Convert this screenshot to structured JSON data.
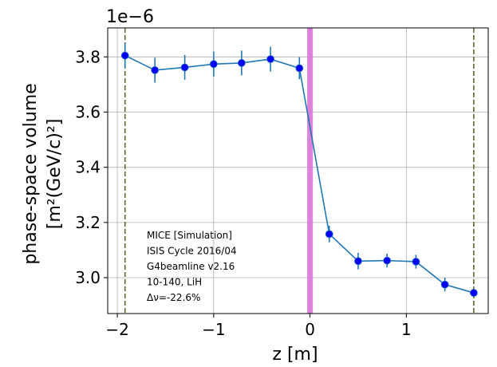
{
  "chart_data": {
    "type": "line",
    "xlabel": "z [m]",
    "ylabel_line1": "phase-space volume",
    "ylabel_line2": "[m²(GeV/c)²]",
    "offset_text": "1e−6",
    "xlim": [
      -2.1,
      1.85
    ],
    "ylim": [
      2.87,
      3.905
    ],
    "xticks": [
      -2,
      -1,
      0,
      1
    ],
    "xtick_labels": [
      "−2",
      "−1",
      "0",
      "1"
    ],
    "yticks": [
      3.0,
      3.2,
      3.4,
      3.6,
      3.8
    ],
    "ytick_labels": [
      "3.0",
      "3.2",
      "3.4",
      "3.6",
      "3.8"
    ],
    "grid": true,
    "series": [
      {
        "x": [
          -1.92,
          -1.61,
          -1.3,
          -1.0,
          -0.71,
          -0.41,
          -0.11,
          0.2,
          0.5,
          0.8,
          1.1,
          1.4,
          1.7
        ],
        "y": [
          3.805,
          3.752,
          3.762,
          3.774,
          3.778,
          3.792,
          3.759,
          3.158,
          3.06,
          3.062,
          3.058,
          2.975,
          2.945
        ],
        "yerr": [
          0.045,
          0.045,
          0.045,
          0.045,
          0.045,
          0.045,
          0.04,
          0.03,
          0.03,
          0.025,
          0.025,
          0.025,
          0.015
        ],
        "line_color": "#1f77b4",
        "marker_color": "#0000ff",
        "errorbar_color": "#1f77b4"
      }
    ],
    "vertical_lines": [
      {
        "x": -1.92,
        "style": "dashed",
        "color": "#556b2f"
      },
      {
        "x": 1.7,
        "style": "dashed",
        "color": "#556b2f"
      }
    ],
    "highlight_band": {
      "x0": -0.03,
      "x1": 0.03,
      "color": "#da70d6"
    },
    "annotation": [
      "MICE [Simulation]",
      "ISIS Cycle 2016/04",
      "G4beamline v2.16",
      "10-140, LiH",
      "Δν=-22.6%"
    ]
  }
}
